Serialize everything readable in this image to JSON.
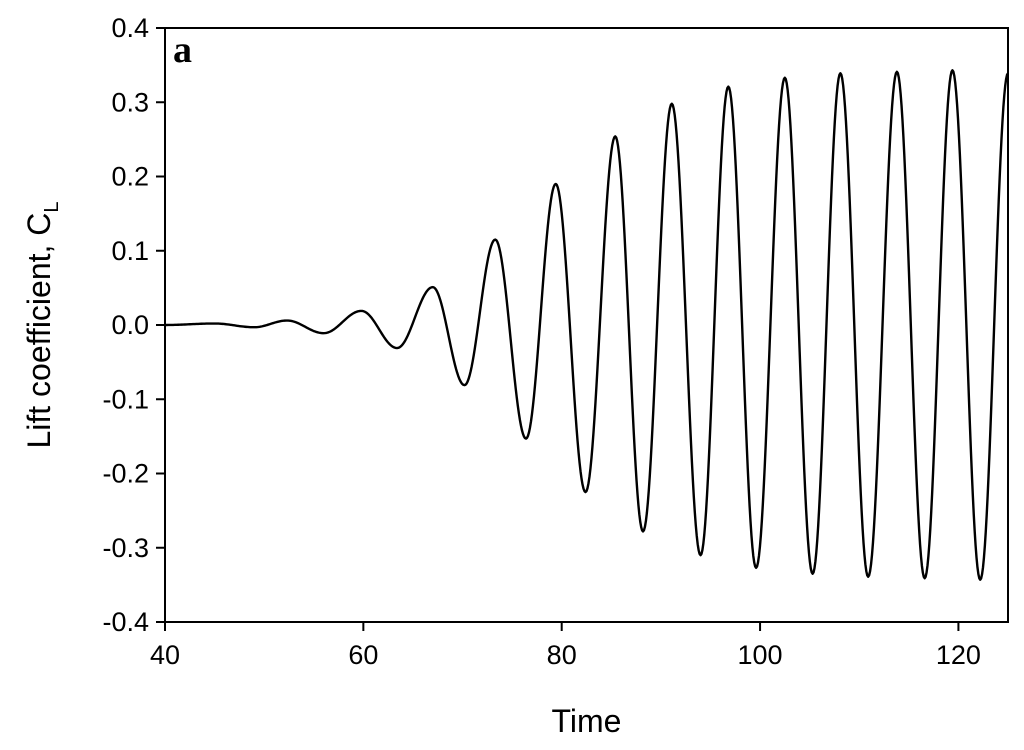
{
  "chart_data": {
    "type": "line",
    "panel_label": "a",
    "title": "",
    "xlabel": "Time",
    "ylabel": "Lift coefficient, C",
    "ylabel_subscript": "L",
    "xlim": [
      40,
      125
    ],
    "ylim": [
      -0.4,
      0.4
    ],
    "xticks": [
      40,
      60,
      80,
      100,
      120
    ],
    "xtick_labels": [
      "40",
      "60",
      "80",
      "100",
      "120"
    ],
    "yticks": [
      -0.4,
      -0.3,
      -0.2,
      -0.1,
      0.0,
      0.1,
      0.2,
      0.3,
      0.4
    ],
    "ytick_labels": [
      "-0.4",
      "-0.3",
      "-0.2",
      "-0.1",
      "0.0",
      "0.1",
      "0.2",
      "0.3",
      "0.4"
    ],
    "grid": false,
    "legend": "none",
    "line_color": "#000000",
    "series": [
      {
        "extrema": [
          {
            "x": 40.0,
            "y": 0.0
          },
          {
            "x": 45.0,
            "y": 0.002
          },
          {
            "x": 49.0,
            "y": -0.003
          },
          {
            "x": 52.3,
            "y": 0.006
          },
          {
            "x": 56.0,
            "y": -0.011
          },
          {
            "x": 59.8,
            "y": 0.019
          },
          {
            "x": 63.4,
            "y": -0.031
          },
          {
            "x": 67.0,
            "y": 0.051
          },
          {
            "x": 70.2,
            "y": -0.081
          },
          {
            "x": 73.3,
            "y": 0.115
          },
          {
            "x": 76.4,
            "y": -0.153
          },
          {
            "x": 79.4,
            "y": 0.19
          },
          {
            "x": 82.4,
            "y": -0.225
          },
          {
            "x": 85.4,
            "y": 0.254
          },
          {
            "x": 88.2,
            "y": -0.278
          },
          {
            "x": 91.1,
            "y": 0.298
          },
          {
            "x": 94.0,
            "y": -0.31
          },
          {
            "x": 96.8,
            "y": 0.321
          },
          {
            "x": 99.6,
            "y": -0.327
          },
          {
            "x": 102.5,
            "y": 0.333
          },
          {
            "x": 105.3,
            "y": -0.335
          },
          {
            "x": 108.1,
            "y": 0.339
          },
          {
            "x": 110.9,
            "y": -0.339
          },
          {
            "x": 113.8,
            "y": 0.341
          },
          {
            "x": 116.6,
            "y": -0.341
          },
          {
            "x": 119.4,
            "y": 0.343
          },
          {
            "x": 122.2,
            "y": -0.343
          },
          {
            "x": 125.0,
            "y": 0.339
          }
        ]
      }
    ]
  }
}
